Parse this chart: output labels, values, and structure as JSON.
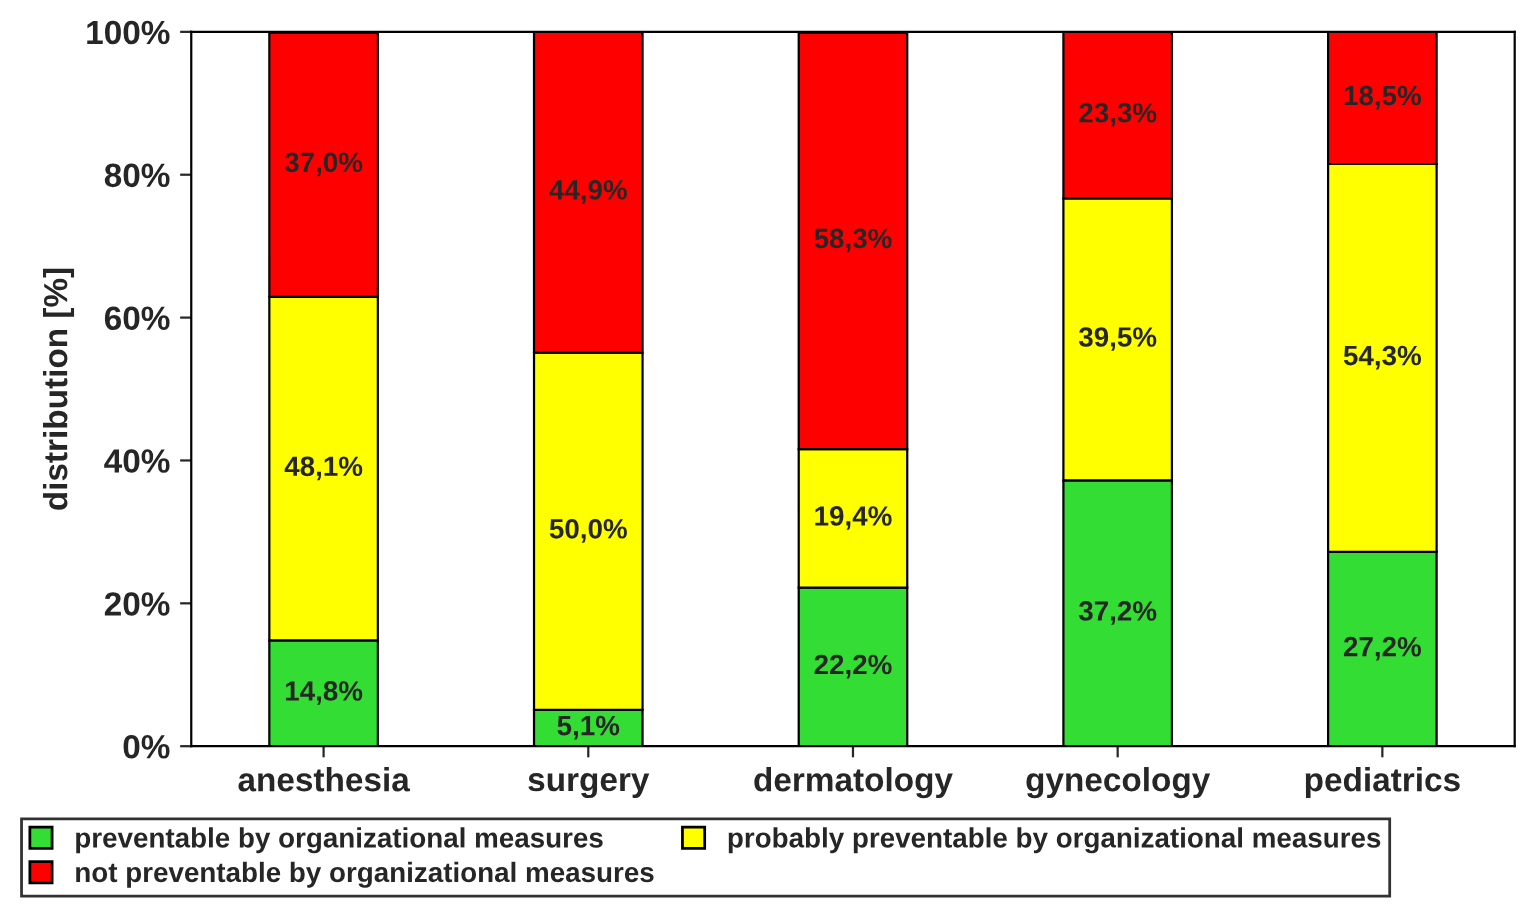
{
  "chart_data": {
    "type": "bar",
    "stacked": true,
    "ylabel": "distribution [%]",
    "categories": [
      "anesthesia",
      "surgery",
      "dermatology",
      "gynecology",
      "pediatrics"
    ],
    "series": [
      {
        "name": "preventable by organizational measures",
        "color": "#33dd33",
        "values": [
          14.8,
          5.1,
          22.2,
          37.2,
          27.2
        ],
        "value_labels": [
          "14,8%",
          "5,1%",
          "22,2%",
          "37,2%",
          "27,2%"
        ]
      },
      {
        "name": "probably preventable by organizational measures",
        "color": "#ffff00",
        "values": [
          48.1,
          50.0,
          19.4,
          39.5,
          54.3
        ],
        "value_labels": [
          "48,1%",
          "50,0%",
          "19,4%",
          "39,5%",
          "54,3%"
        ]
      },
      {
        "name": "not preventable by organizational measures",
        "color": "#ff0000",
        "values": [
          37.0,
          44.9,
          58.3,
          23.3,
          18.5
        ],
        "value_labels": [
          "37,0%",
          "44,9%",
          "58,3%",
          "23,3%",
          "18,5%"
        ]
      }
    ],
    "ylim": [
      0,
      100
    ],
    "yticks": [
      {
        "value": 0,
        "label": "0%"
      },
      {
        "value": 20,
        "label": "20%"
      },
      {
        "value": 40,
        "label": "40%"
      },
      {
        "value": 60,
        "label": "60%"
      },
      {
        "value": 80,
        "label": "80%"
      },
      {
        "value": 100,
        "label": "100%"
      }
    ],
    "grid": false,
    "legend": "bottom"
  }
}
